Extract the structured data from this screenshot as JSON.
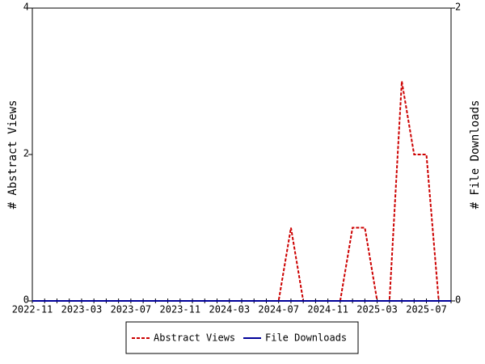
{
  "chart_data": {
    "type": "line",
    "y_label": "# Abstract Views",
    "y2_label": "# File Downloads",
    "categories": [
      "2022-11",
      null,
      null,
      null,
      "2023-03",
      null,
      null,
      null,
      "2023-07",
      null,
      null,
      null,
      "2023-11",
      null,
      null,
      null,
      "2024-03",
      null,
      null,
      null,
      "2024-07",
      null,
      null,
      null,
      "2024-11",
      null,
      null,
      null,
      "2025-03",
      null,
      null,
      null,
      "2025-07",
      null,
      null
    ],
    "series": [
      {
        "name": "Abstract Views",
        "color": "#cc0000",
        "dash": true,
        "values": [
          0,
          0,
          0,
          0,
          0,
          0,
          0,
          0,
          0,
          0,
          0,
          0,
          0,
          0,
          0,
          0,
          0,
          0,
          0,
          0,
          0,
          1,
          0,
          0,
          0,
          0,
          1,
          1,
          0,
          0,
          3,
          2,
          2,
          0,
          0
        ]
      },
      {
        "name": "File Downloads",
        "color": "#000099",
        "dash": false,
        "axis": "y2",
        "values": [
          0,
          0,
          0,
          0,
          0,
          0,
          0,
          0,
          0,
          0,
          0,
          0,
          0,
          0,
          0,
          0,
          0,
          0,
          0,
          0,
          0,
          0,
          0,
          0,
          0,
          0,
          0,
          0,
          0,
          0,
          0,
          0,
          0,
          0,
          0
        ]
      }
    ],
    "ylim": [
      0,
      4
    ],
    "yticks": [
      0,
      2,
      4
    ],
    "y2lim": [
      0,
      2
    ],
    "y2ticks": [
      0,
      2
    ],
    "grid": false
  }
}
